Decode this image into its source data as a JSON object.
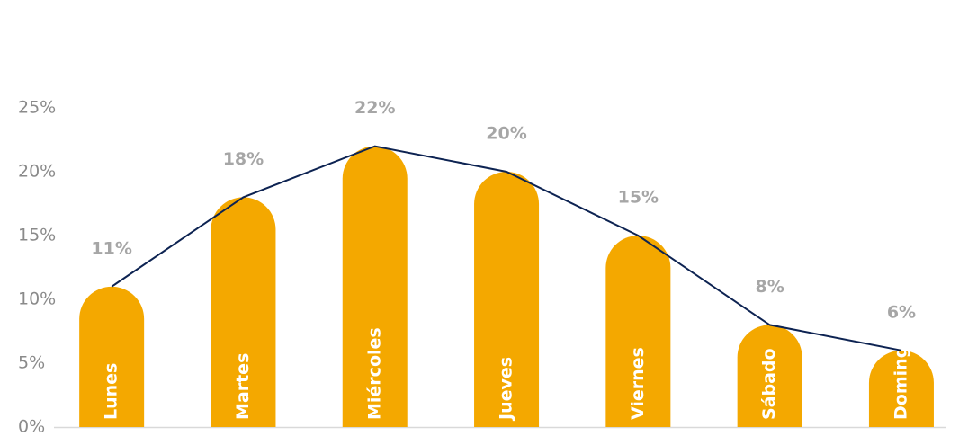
{
  "chart_data": {
    "type": "bar",
    "categories": [
      "Lunes",
      "Martes",
      "Miércoles",
      "Jueves",
      "Viernes",
      "Sábado",
      "Domingo"
    ],
    "values": [
      11,
      18,
      22,
      20,
      15,
      8,
      6
    ],
    "value_labels": [
      "11%",
      "18%",
      "22%",
      "20%",
      "15%",
      "8%",
      "6%"
    ],
    "color": "#f4a800",
    "line_color": "#0d2352",
    "ylim": [
      0,
      25
    ],
    "yticks": [
      {
        "value": 0,
        "label": "0%"
      },
      {
        "value": 5,
        "label": "5%"
      },
      {
        "value": 10,
        "label": "10%"
      },
      {
        "value": 15,
        "label": "15%"
      },
      {
        "value": 20,
        "label": "20%"
      },
      {
        "value": 25,
        "label": "25%"
      }
    ],
    "grid": false
  }
}
